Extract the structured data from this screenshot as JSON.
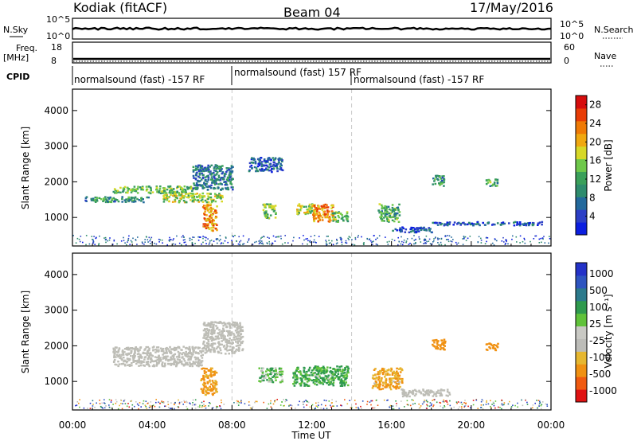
{
  "header": {
    "station": "Kodiak (fitACF)",
    "beam": "Beam 04",
    "date": "17/May/2016"
  },
  "summary_panel": {
    "nsky_label": "N.Sky",
    "nsky_ticks": [
      "10^5",
      "10^0"
    ],
    "nsearch_label": "N.Search",
    "nsearch_ticks": [
      "10^5",
      "10^0"
    ],
    "freq_label": "Freq.",
    "freq_unit": "[MHz]",
    "freq_ticks": [
      "18",
      "8"
    ],
    "nave_label": "Nave",
    "nave_ticks": [
      "60",
      "0"
    ],
    "cpid_label": "CPID",
    "cpid_segments": [
      {
        "start_hour": 0.0,
        "end_hour": 8.0,
        "label": "normalsound (fast) -157 RF"
      },
      {
        "start_hour": 8.0,
        "end_hour": 14.0,
        "label": "normalsound (fast) 157 RF"
      },
      {
        "start_hour": 14.0,
        "end_hour": 24.0,
        "label": "normalsound (fast) -157 RF"
      }
    ]
  },
  "colors": {
    "power_scale": [
      "#0b1ee0",
      "#2c3fc6",
      "#23699c",
      "#2e8c6d",
      "#3aa05a",
      "#6ec84a",
      "#d7d827",
      "#f0a810",
      "#ef7a06",
      "#e83c06",
      "#d60d0d"
    ],
    "velocity_scale": [
      "#e01212",
      "#f05a10",
      "#f09112",
      "#e6b730",
      "#bcbcb8",
      "#c9c9c4",
      "#60c23a",
      "#2f9a4e",
      "#2c7a8c",
      "#2e55c0",
      "#2432c8"
    ],
    "ground_scatter": "#bdbdb6"
  },
  "chart_data": [
    {
      "type": "heatmap",
      "name": "power",
      "ylabel": "Slant Range [km]",
      "yticks": [
        "1000",
        "2000",
        "3000",
        "4000"
      ],
      "ylim": [
        200,
        4600
      ],
      "xlim": [
        0,
        24
      ],
      "colorbar": {
        "label": "Power [dB]",
        "ticks": [
          "4",
          "8",
          "12",
          "16",
          "20",
          "24",
          "28"
        ],
        "range": [
          0,
          30
        ]
      },
      "echo_regions": [
        {
          "hour_range": [
            0.6,
            3.8
          ],
          "range_km": [
            1450,
            1600
          ],
          "power_db": 10
        },
        {
          "hour_range": [
            2.0,
            6.0
          ],
          "range_km": [
            1700,
            1900
          ],
          "power_db": 14
        },
        {
          "hour_range": [
            4.5,
            7.5
          ],
          "range_km": [
            1450,
            1700
          ],
          "power_db": 16
        },
        {
          "hour_range": [
            6.5,
            7.2
          ],
          "range_km": [
            650,
            1400
          ],
          "power_db": 22
        },
        {
          "hour_range": [
            6.0,
            8.0
          ],
          "range_km": [
            1800,
            2500
          ],
          "power_db": 8
        },
        {
          "hour_range": [
            8.8,
            10.5
          ],
          "range_km": [
            2300,
            2700
          ],
          "power_db": 6
        },
        {
          "hour_range": [
            9.5,
            10.2
          ],
          "range_km": [
            1000,
            1400
          ],
          "power_db": 14
        },
        {
          "hour_range": [
            11.2,
            12.1
          ],
          "range_km": [
            1100,
            1400
          ],
          "power_db": 16
        },
        {
          "hour_range": [
            12.0,
            13.1
          ],
          "range_km": [
            900,
            1400
          ],
          "power_db": 22
        },
        {
          "hour_range": [
            13.0,
            13.8
          ],
          "range_km": [
            900,
            1200
          ],
          "power_db": 14
        },
        {
          "hour_range": [
            15.3,
            16.4
          ],
          "range_km": [
            900,
            1400
          ],
          "power_db": 12
        },
        {
          "hour_range": [
            16.0,
            18.0
          ],
          "range_km": [
            600,
            750
          ],
          "power_db": 5
        },
        {
          "hour_range": [
            18.0,
            18.6
          ],
          "range_km": [
            1900,
            2200
          ],
          "power_db": 10
        },
        {
          "hour_range": [
            20.7,
            21.3
          ],
          "range_km": [
            1900,
            2100
          ],
          "power_db": 12
        },
        {
          "hour_range": [
            18.0,
            23.5
          ],
          "range_km": [
            800,
            900
          ],
          "power_db": 5
        }
      ]
    },
    {
      "type": "heatmap",
      "name": "velocity",
      "xlabel": "Time UT",
      "xticks": [
        "00:00",
        "04:00",
        "08:00",
        "12:00",
        "16:00",
        "20:00",
        "00:00"
      ],
      "ylabel": "Slant Range [km]",
      "yticks": [
        "1000",
        "2000",
        "3000",
        "4000"
      ],
      "ylim": [
        200,
        4600
      ],
      "xlim": [
        0,
        24
      ],
      "colorbar": {
        "label": "Velocity [m s⁻¹]",
        "ticks": [
          "1000",
          "500",
          "100",
          "25",
          "-25",
          "-100",
          "-500",
          "-1000"
        ]
      },
      "echo_regions": [
        {
          "hour_range": [
            2.0,
            6.5
          ],
          "range_km": [
            1450,
            2000
          ],
          "velocity": "ground scatter"
        },
        {
          "hour_range": [
            6.5,
            8.5
          ],
          "range_km": [
            1800,
            2700
          ],
          "velocity": "ground scatter"
        },
        {
          "hour_range": [
            6.4,
            7.2
          ],
          "range_km": [
            650,
            1400
          ],
          "velocity_ms": -150
        },
        {
          "hour_range": [
            9.3,
            10.5
          ],
          "range_km": [
            1000,
            1400
          ],
          "velocity_ms": 80
        },
        {
          "hour_range": [
            11.0,
            13.8
          ],
          "range_km": [
            900,
            1450
          ],
          "velocity_ms": 120
        },
        {
          "hour_range": [
            15.0,
            16.5
          ],
          "range_km": [
            800,
            1400
          ],
          "velocity_ms": -120
        },
        {
          "hour_range": [
            16.5,
            19.0
          ],
          "range_km": [
            600,
            800
          ],
          "velocity": "ground scatter"
        },
        {
          "hour_range": [
            18.0,
            18.7
          ],
          "range_km": [
            1900,
            2200
          ],
          "velocity_ms": -300
        },
        {
          "hour_range": [
            20.7,
            21.3
          ],
          "range_km": [
            1900,
            2100
          ],
          "velocity_ms": -300
        }
      ]
    }
  ]
}
